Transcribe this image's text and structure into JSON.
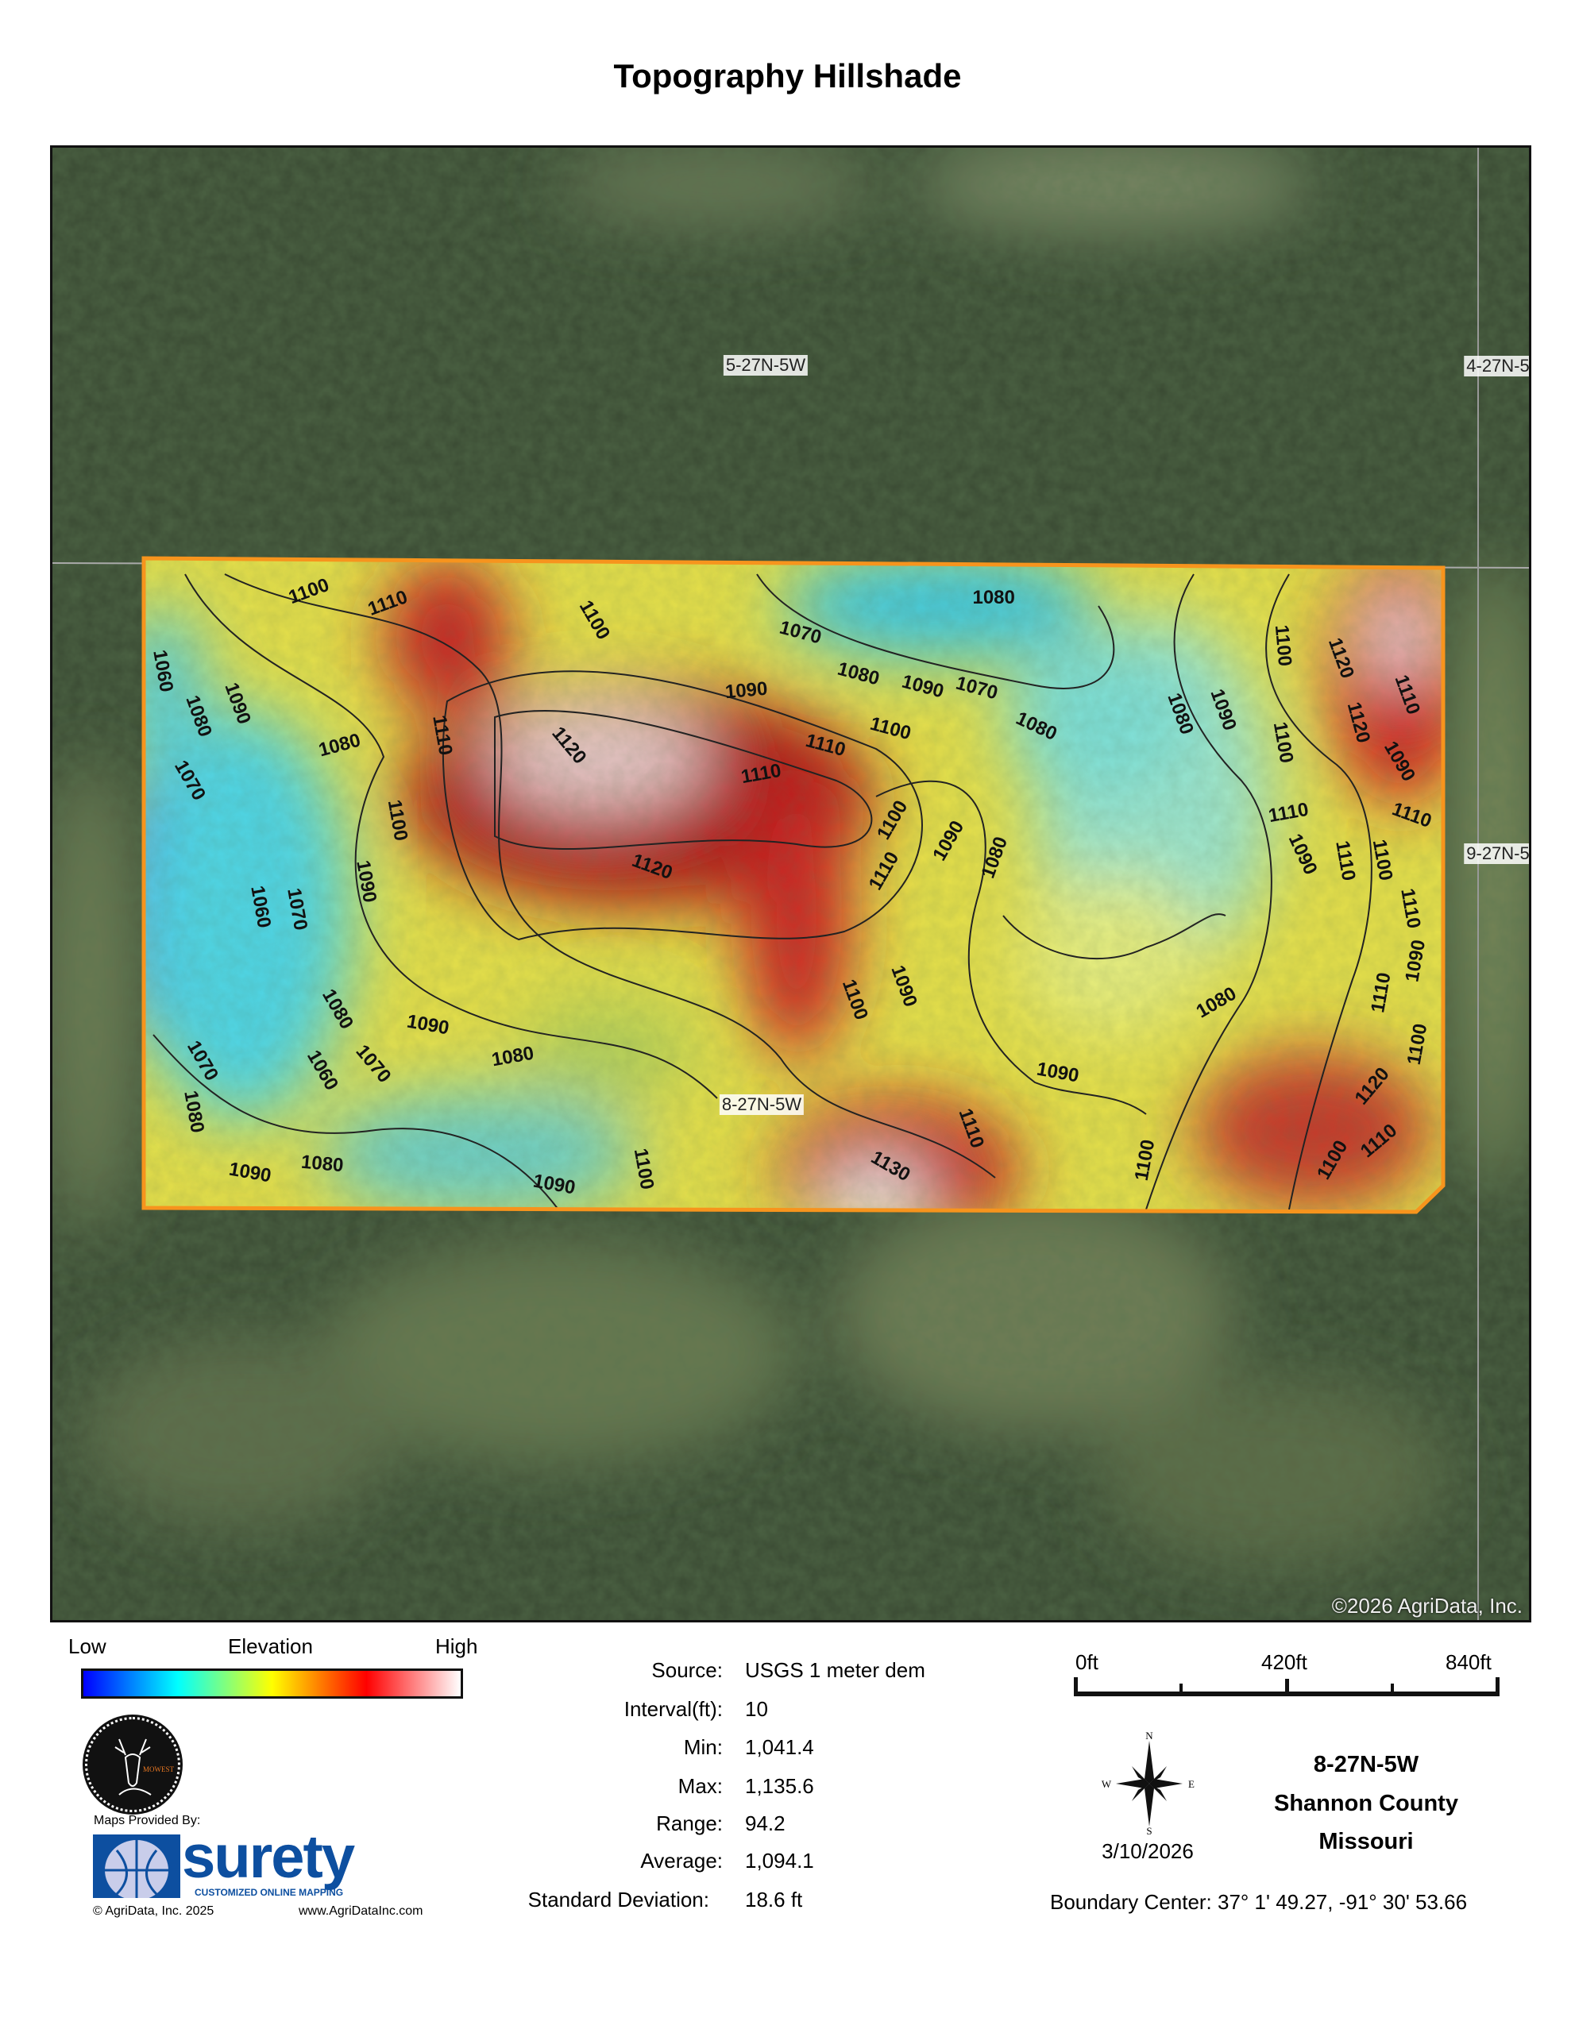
{
  "title": "Topography Hillshade",
  "map": {
    "section_labels": [
      "5-27N-5W",
      "4-27N-5",
      "9-27N-5",
      "8-27N-5W"
    ],
    "contour_labels": [
      "1060",
      "1080",
      "1090",
      "1070",
      "1100",
      "1110",
      "1100",
      "1110",
      "1080",
      "1110",
      "1120",
      "1090",
      "1100",
      "1110",
      "1120",
      "1070",
      "1080",
      "1090",
      "1100",
      "1110",
      "1070",
      "1080",
      "1090",
      "1080",
      "1080",
      "1090",
      "1100",
      "1110",
      "1120",
      "1110",
      "1090",
      "1100",
      "1060",
      "1070",
      "1090",
      "1100",
      "1110",
      "1110",
      "1120",
      "1110",
      "1100",
      "1090",
      "1090",
      "1080",
      "1060",
      "1070",
      "1080",
      "1090",
      "1080",
      "1070",
      "1080",
      "1090",
      "1080",
      "1090",
      "1100",
      "1130",
      "1100",
      "1110",
      "1100",
      "1090",
      "1080",
      "1090",
      "1100",
      "1110",
      "1100",
      "1110",
      "1120"
    ],
    "copyright": "©2026 AgriData, Inc.",
    "boundary_color": "#f7941d"
  },
  "legend": {
    "low": "Low",
    "title": "Elevation",
    "high": "High",
    "gradient": [
      "#0000ff",
      "#00ffff",
      "#ffff00",
      "#ff0000",
      "#ffffff"
    ]
  },
  "stats": [
    {
      "label": "Source:",
      "value": "USGS 1 meter dem"
    },
    {
      "label": "Interval(ft):",
      "value": "10"
    },
    {
      "label": "Min:",
      "value": "1,041.4"
    },
    {
      "label": "Max:",
      "value": "1,135.6"
    },
    {
      "label": "Range:",
      "value": "94.2"
    },
    {
      "label": "Average:",
      "value": "1,094.1"
    },
    {
      "label": "Standard Deviation:",
      "value": "18.6 ft"
    }
  ],
  "scale": {
    "labels": [
      "0ft",
      "420ft",
      "840ft"
    ]
  },
  "compass": {
    "n": "N",
    "s": "S",
    "e": "E",
    "w": "W"
  },
  "date": "3/10/2026",
  "location": {
    "section": "8-27N-5W",
    "county": "Shannon County",
    "state": "Missouri"
  },
  "boundary_center": "Boundary Center: 37° 1' 49.27,  -91° 30' 53.66",
  "branding": {
    "provided_by": "Maps Provided By:",
    "logo_text": "surety",
    "logo_tagline": "CUSTOMIZED ONLINE MAPPING",
    "copyright": "© AgriData, Inc. 2025",
    "website": "www.AgriDataInc.com",
    "badge_text": "MOWEST"
  }
}
